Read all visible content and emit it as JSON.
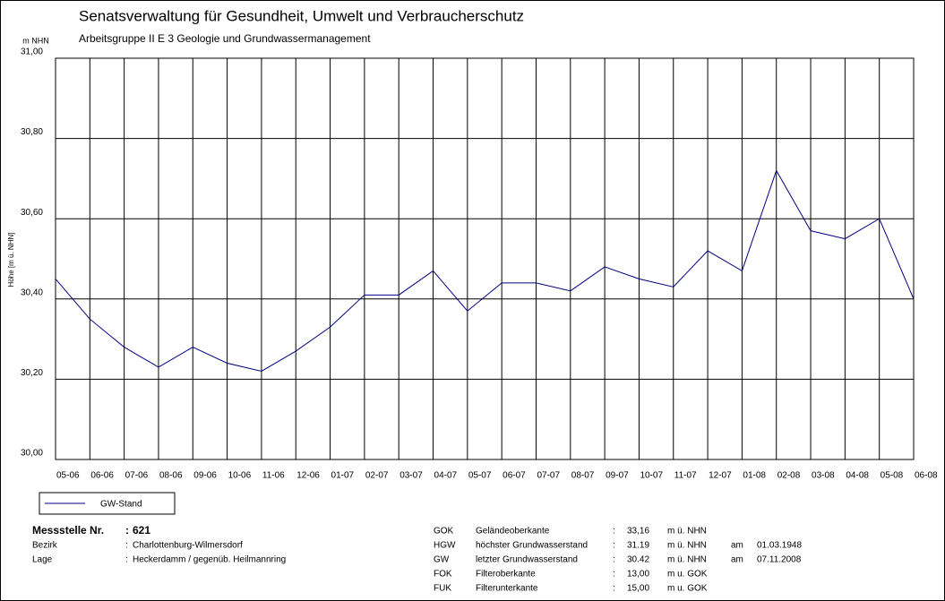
{
  "chart_data": {
    "type": "line",
    "title": "Senatsverwaltung für Gesundheit, Umwelt und Verbraucherschutz",
    "subtitle": "Arbeitsgruppe II E 3 Geologie und Grundwassermanagement",
    "y_unit": "m NHN",
    "y_label": "Höhe [m ü. NHN]",
    "categories": [
      "05-06",
      "06-06",
      "07-06",
      "08-06",
      "09-06",
      "10-06",
      "11-06",
      "12-06",
      "01-07",
      "02-07",
      "03-07",
      "04-07",
      "05-07",
      "06-07",
      "07-07",
      "08-07",
      "09-07",
      "10-07",
      "11-07",
      "12-07",
      "01-08",
      "02-08",
      "03-08",
      "04-08",
      "05-08",
      "06-08"
    ],
    "series": [
      {
        "name": "GW-Stand",
        "color": "#000080",
        "values": [
          30.45,
          30.35,
          30.28,
          30.23,
          30.28,
          30.24,
          30.22,
          30.27,
          30.33,
          30.41,
          30.41,
          30.47,
          30.37,
          30.44,
          30.44,
          30.42,
          30.48,
          30.45,
          30.43,
          30.52,
          30.47,
          30.72,
          30.57,
          30.55,
          30.6,
          30.4
        ]
      }
    ],
    "ylim": [
      30,
      31
    ],
    "yticks": [
      {
        "value": 30,
        "label": "30,00"
      },
      {
        "value": 30.2,
        "label": "30,20"
      },
      {
        "value": 30.4,
        "label": "30,40"
      },
      {
        "value": 30.6,
        "label": "30,60"
      },
      {
        "value": 30.8,
        "label": "30,80"
      },
      {
        "value": 31,
        "label": "31,00"
      }
    ],
    "grid": true
  },
  "info": {
    "left": [
      {
        "label": "Messstelle Nr.",
        "sep": ":",
        "value": "621"
      },
      {
        "label": "Bezirk",
        "sep": ":",
        "value": "Charlottenburg-Wilmersdorf"
      },
      {
        "label": "Lage",
        "sep": ":",
        "value": "Heckerdamm / gegenüb. Heilmannring"
      }
    ],
    "right": [
      [
        "GOK",
        "Geländeoberkante",
        ":",
        "33,16",
        "m ü. NHN"
      ],
      [
        "HGW",
        "höchster Grundwasserstand",
        ":",
        "31.19",
        "m ü. NHN",
        "am",
        "01.03.1948"
      ],
      [
        "GW",
        "letzter Grundwasserstand",
        ":",
        "30.42",
        "m ü. NHN",
        "am",
        "07.11.2008"
      ],
      [
        "FOK",
        "Filteroberkante",
        ":",
        "13,00",
        "m u. GOK"
      ],
      [
        "FUK",
        "Filterunterkante",
        ":",
        "15,00",
        "m u. GOK"
      ]
    ]
  }
}
